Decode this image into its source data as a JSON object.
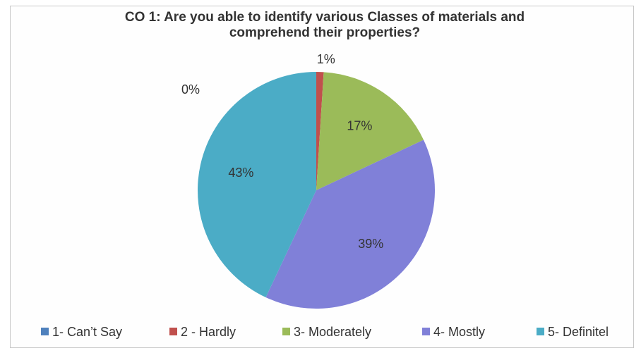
{
  "chart_data": {
    "type": "pie",
    "title": "CO 1: Are you able to identify various Classes of materials and comprehend their properties?",
    "categories": [
      "1- Can’t Say",
      "2 - Hardly",
      "3- Moderately",
      "4- Mostly",
      "5- Definitel"
    ],
    "values": [
      0,
      1,
      17,
      39,
      43
    ],
    "value_labels": [
      "0%",
      "1%",
      "17%",
      "39%",
      "43%"
    ],
    "colors": [
      "#4f81bd",
      "#c0504d",
      "#9bbb59",
      "#8080d8",
      "#4bacc6"
    ],
    "legend": "bottom"
  }
}
